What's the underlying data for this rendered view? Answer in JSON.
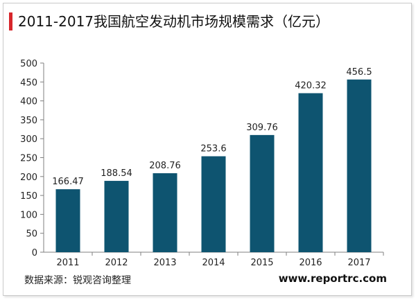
{
  "title": "2011-2017我国航空发动机市场规模需求（亿元）",
  "source": "数据来源：锐观咨询整理",
  "website": "www.reportrc.com",
  "colors": {
    "bar": "#0e5470",
    "accent": "#d7262b",
    "axis": "#7f7f7f"
  },
  "chart_data": {
    "type": "bar",
    "title": "2011-2017我国航空发动机市场规模需求（亿元）",
    "categories": [
      "2011",
      "2012",
      "2013",
      "2014",
      "2015",
      "2016",
      "2017"
    ],
    "values": [
      166.47,
      188.54,
      208.76,
      253.6,
      309.76,
      420.32,
      456.5
    ],
    "value_labels": [
      "166.47",
      "188.54",
      "208.76",
      "253.6",
      "309.76",
      "420.32",
      "456.5"
    ],
    "xlabel": "",
    "ylabel": "",
    "ylim": [
      0,
      500
    ],
    "yticks": [
      0,
      50,
      100,
      150,
      200,
      250,
      300,
      350,
      400,
      450,
      500
    ],
    "grid": false,
    "legend": "none"
  }
}
